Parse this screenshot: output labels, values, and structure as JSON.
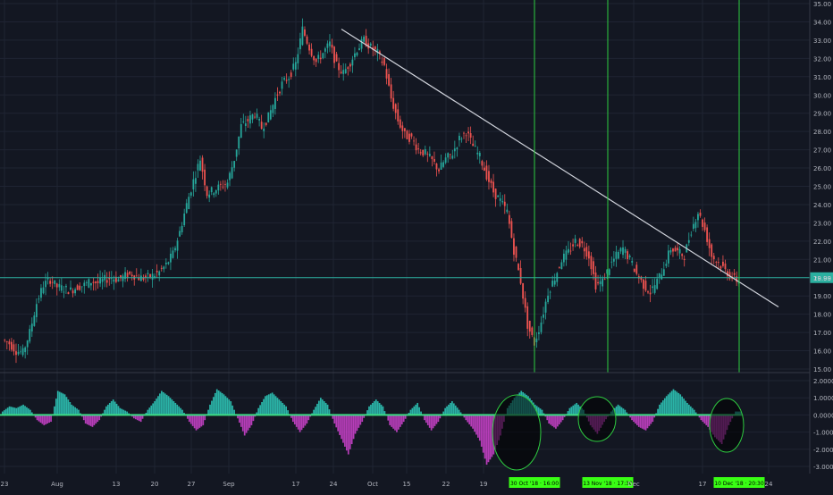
{
  "chart_data": [
    {
      "type": "candlestick",
      "title": "",
      "ylim": [
        15.0,
        35.0
      ],
      "y_ticks": [
        "15.00",
        "16.00",
        "17.00",
        "18.00",
        "19.00",
        "20.00",
        "21.00",
        "22.00",
        "23.00",
        "24.00",
        "25.00",
        "26.00",
        "27.00",
        "28.00",
        "29.00",
        "30.00",
        "31.00",
        "32.00",
        "33.00",
        "34.00",
        "35.00"
      ],
      "x_ticks": [
        "23",
        "Aug",
        "13",
        "20",
        "27",
        "Sep",
        "17",
        "24",
        "Oct",
        "15",
        "22",
        "19",
        "Dec",
        "17",
        "24"
      ],
      "last_price_label": "19.99",
      "horizontal_line_value": 20.0,
      "trendline": {
        "start_value": 33.6,
        "end_value": 18.4
      },
      "series_close_path": [
        16.6,
        16.4,
        16.0,
        15.9,
        17.0,
        18.6,
        19.6,
        19.9,
        19.5,
        19.4,
        19.3,
        19.5,
        19.6,
        19.8,
        19.7,
        19.9,
        20.0,
        19.9,
        20.1,
        20.2,
        20.0,
        20.0,
        20.1,
        20.3,
        20.7,
        21.3,
        22.5,
        24.0,
        25.3,
        26.5,
        24.6,
        24.8,
        25.0,
        25.2,
        26.5,
        28.3,
        28.6,
        29.0,
        28.2,
        28.8,
        29.8,
        30.6,
        31.0,
        31.7,
        33.6,
        32.6,
        31.8,
        32.3,
        32.8,
        31.6,
        31.2,
        31.8,
        32.5,
        33.0,
        32.6,
        32.3,
        31.6,
        29.8,
        28.6,
        27.8,
        27.6,
        27.0,
        26.8,
        26.4,
        25.9,
        26.5,
        26.8,
        27.6,
        28.0,
        27.2,
        26.6,
        25.6,
        24.7,
        24.2,
        23.6,
        21.5,
        19.8,
        17.4,
        16.4,
        17.6,
        19.2,
        20.0,
        21.0,
        21.4,
        22.0,
        21.8,
        21.2,
        19.6,
        19.8,
        20.6,
        21.2,
        21.6,
        21.0,
        20.2,
        19.6,
        19.2,
        19.8,
        20.6,
        21.6,
        21.4,
        21.2,
        22.6,
        23.6,
        22.6,
        21.2,
        20.8,
        20.4,
        20.0,
        19.8
      ],
      "vertical_marker_labels": [
        "30 Oct '18 · 16:00",
        "13 Nov '18 · 17:30",
        "10 Dec '18 · 20:30"
      ]
    },
    {
      "type": "histogram",
      "ylim": [
        -3.0,
        2.0
      ],
      "y_ticks": [
        "2.0000",
        "1.0000",
        "0.0000",
        "-1.0000",
        "-2.0000",
        "-3.0000"
      ],
      "values": [
        0.2,
        0.5,
        0.4,
        0.6,
        0.3,
        -0.3,
        -0.6,
        -0.4,
        1.4,
        1.2,
        0.6,
        0.3,
        -0.5,
        -0.7,
        -0.3,
        0.5,
        0.9,
        0.4,
        0.2,
        -0.2,
        -0.4,
        0.3,
        0.8,
        1.4,
        1.1,
        0.7,
        0.3,
        -0.4,
        -0.9,
        -0.6,
        0.6,
        1.5,
        1.2,
        0.8,
        -0.2,
        -1.2,
        -0.6,
        0.4,
        1.1,
        1.3,
        0.9,
        0.5,
        -0.4,
        -1.0,
        -0.5,
        0.3,
        1.0,
        0.6,
        -0.5,
        -1.4,
        -2.3,
        -1.1,
        -0.4,
        0.5,
        0.9,
        0.5,
        -0.6,
        -1.0,
        -0.4,
        0.3,
        0.7,
        -0.3,
        -0.9,
        -0.4,
        0.4,
        0.8,
        0.3,
        -0.3,
        -0.8,
        -1.5,
        -2.9,
        -2.3,
        -1.2,
        0.4,
        1.0,
        1.4,
        1.1,
        0.6,
        0.3,
        -0.5,
        -0.8,
        -0.3,
        0.4,
        0.7,
        0.3,
        -0.6,
        -1.1,
        -0.4,
        0.2,
        0.6,
        0.3,
        -0.3,
        -0.7,
        -0.9,
        -0.4,
        0.6,
        1.1,
        1.5,
        1.2,
        0.7,
        0.3,
        -0.3,
        -0.7,
        -1.3,
        -1.7,
        -0.6,
        0.2
      ]
    }
  ]
}
